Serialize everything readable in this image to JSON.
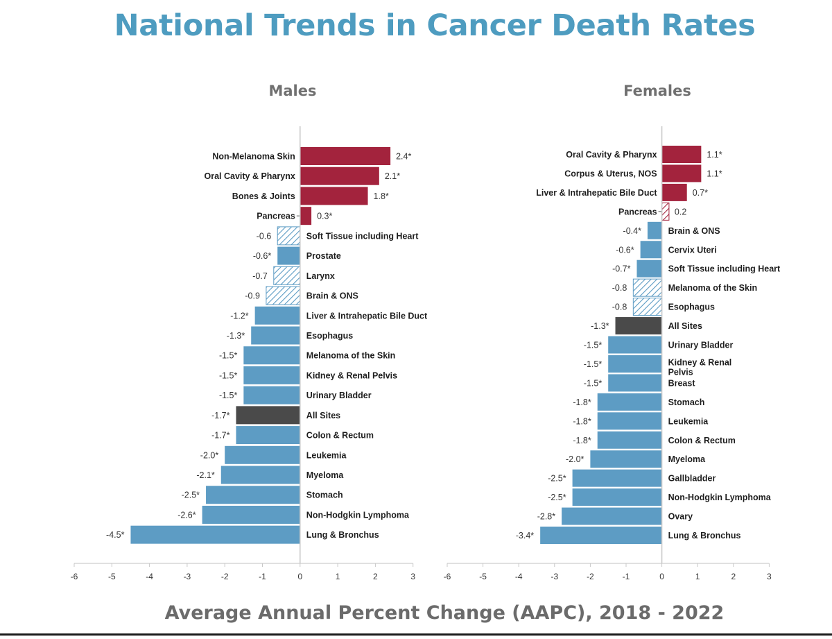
{
  "title": "National Trends in Cancer Death Rates",
  "x_axis_title": "Average Annual Percent Change (AAPC), 2018 - 2022",
  "colors": {
    "increase": "#a3233d",
    "decrease": "#5d9cc4",
    "all_sites": "#4a4a4a",
    "title": "#4e9cc0",
    "panel_title": "#707070"
  },
  "chart_data": [
    {
      "type": "bar",
      "orientation": "horizontal",
      "title": "Males",
      "xlabel": "Average Annual Percent Change (AAPC), 2018 - 2022",
      "xlim": [
        -6,
        3
      ],
      "xticks": [
        "-6",
        "-5",
        "-4",
        "-3",
        "-2",
        "-1",
        "0",
        "1",
        "2",
        "3"
      ],
      "bars": [
        {
          "category": "Non-Melanoma Skin",
          "value": 2.4,
          "label": "2.4*",
          "significant": true
        },
        {
          "category": "Oral Cavity & Pharynx",
          "value": 2.1,
          "label": "2.1*",
          "significant": true
        },
        {
          "category": "Bones & Joints",
          "value": 1.8,
          "label": "1.8*",
          "significant": true
        },
        {
          "category": "Pancreas",
          "value": 0.3,
          "label": "0.3*",
          "significant": true
        },
        {
          "category": "Soft Tissue including Heart",
          "value": -0.6,
          "label": "-0.6",
          "significant": false
        },
        {
          "category": "Prostate",
          "value": -0.6,
          "label": "-0.6*",
          "significant": true
        },
        {
          "category": "Larynx",
          "value": -0.7,
          "label": "-0.7",
          "significant": false
        },
        {
          "category": "Brain & ONS",
          "value": -0.9,
          "label": "-0.9",
          "significant": false
        },
        {
          "category": "Liver & Intrahepatic Bile Duct",
          "value": -1.2,
          "label": "-1.2*",
          "significant": true
        },
        {
          "category": "Esophagus",
          "value": -1.3,
          "label": "-1.3*",
          "significant": true
        },
        {
          "category": "Melanoma of the Skin",
          "value": -1.5,
          "label": "-1.5*",
          "significant": true
        },
        {
          "category": "Kidney & Renal Pelvis",
          "value": -1.5,
          "label": "-1.5*",
          "significant": true
        },
        {
          "category": "Urinary Bladder",
          "value": -1.5,
          "label": "-1.5*",
          "significant": true
        },
        {
          "category": "All Sites",
          "value": -1.7,
          "label": "-1.7*",
          "significant": true,
          "all_sites": true
        },
        {
          "category": "Colon & Rectum",
          "value": -1.7,
          "label": "-1.7*",
          "significant": true
        },
        {
          "category": "Leukemia",
          "value": -2.0,
          "label": "-2.0*",
          "significant": true
        },
        {
          "category": "Myeloma",
          "value": -2.1,
          "label": "-2.1*",
          "significant": true
        },
        {
          "category": "Stomach",
          "value": -2.5,
          "label": "-2.5*",
          "significant": true
        },
        {
          "category": "Non-Hodgkin Lymphoma",
          "value": -2.6,
          "label": "-2.6*",
          "significant": true
        },
        {
          "category": "Lung & Bronchus",
          "value": -4.5,
          "label": "-4.5*",
          "significant": true
        }
      ]
    },
    {
      "type": "bar",
      "orientation": "horizontal",
      "title": "Females",
      "xlabel": "Average Annual Percent Change (AAPC), 2018 - 2022",
      "xlim": [
        -6,
        3
      ],
      "xticks": [
        "-6",
        "-5",
        "-4",
        "-3",
        "-2",
        "-1",
        "0",
        "1",
        "2",
        "3"
      ],
      "bars": [
        {
          "category": "Oral Cavity & Pharynx",
          "value": 1.1,
          "label": "1.1*",
          "significant": true
        },
        {
          "category": "Corpus & Uterus, NOS",
          "value": 1.1,
          "label": "1.1*",
          "significant": true
        },
        {
          "category": "Liver & Intrahepatic Bile Duct",
          "value": 0.7,
          "label": "0.7*",
          "significant": true
        },
        {
          "category": "Pancreas",
          "value": 0.2,
          "label": "0.2",
          "significant": false
        },
        {
          "category": "Brain & ONS",
          "value": -0.4,
          "label": "-0.4*",
          "significant": true
        },
        {
          "category": "Cervix Uteri",
          "value": -0.6,
          "label": "-0.6*",
          "significant": true
        },
        {
          "category": "Soft Tissue including Heart",
          "value": -0.7,
          "label": "-0.7*",
          "significant": true
        },
        {
          "category": "Melanoma of the Skin",
          "value": -0.8,
          "label": "-0.8",
          "significant": false
        },
        {
          "category": "Esophagus",
          "value": -0.8,
          "label": "-0.8",
          "significant": false
        },
        {
          "category": "All Sites",
          "value": -1.3,
          "label": "-1.3*",
          "significant": true,
          "all_sites": true
        },
        {
          "category": "Urinary Bladder",
          "value": -1.5,
          "label": "-1.5*",
          "significant": true
        },
        {
          "category": "Kidney & Renal Pelvis",
          "value": -1.5,
          "label": "-1.5*",
          "significant": true
        },
        {
          "category": "Breast",
          "value": -1.5,
          "label": "-1.5*",
          "significant": true
        },
        {
          "category": "Stomach",
          "value": -1.8,
          "label": "-1.8*",
          "significant": true
        },
        {
          "category": "Leukemia",
          "value": -1.8,
          "label": "-1.8*",
          "significant": true
        },
        {
          "category": "Colon & Rectum",
          "value": -1.8,
          "label": "-1.8*",
          "significant": true
        },
        {
          "category": "Myeloma",
          "value": -2.0,
          "label": "-2.0*",
          "significant": true
        },
        {
          "category": "Gallbladder",
          "value": -2.5,
          "label": "-2.5*",
          "significant": true
        },
        {
          "category": "Non-Hodgkin Lymphoma",
          "value": -2.5,
          "label": "-2.5*",
          "significant": true
        },
        {
          "category": "Ovary",
          "value": -2.8,
          "label": "-2.8*",
          "significant": true
        },
        {
          "category": "Lung & Bronchus",
          "value": -3.4,
          "label": "-3.4*",
          "significant": true
        }
      ]
    }
  ]
}
